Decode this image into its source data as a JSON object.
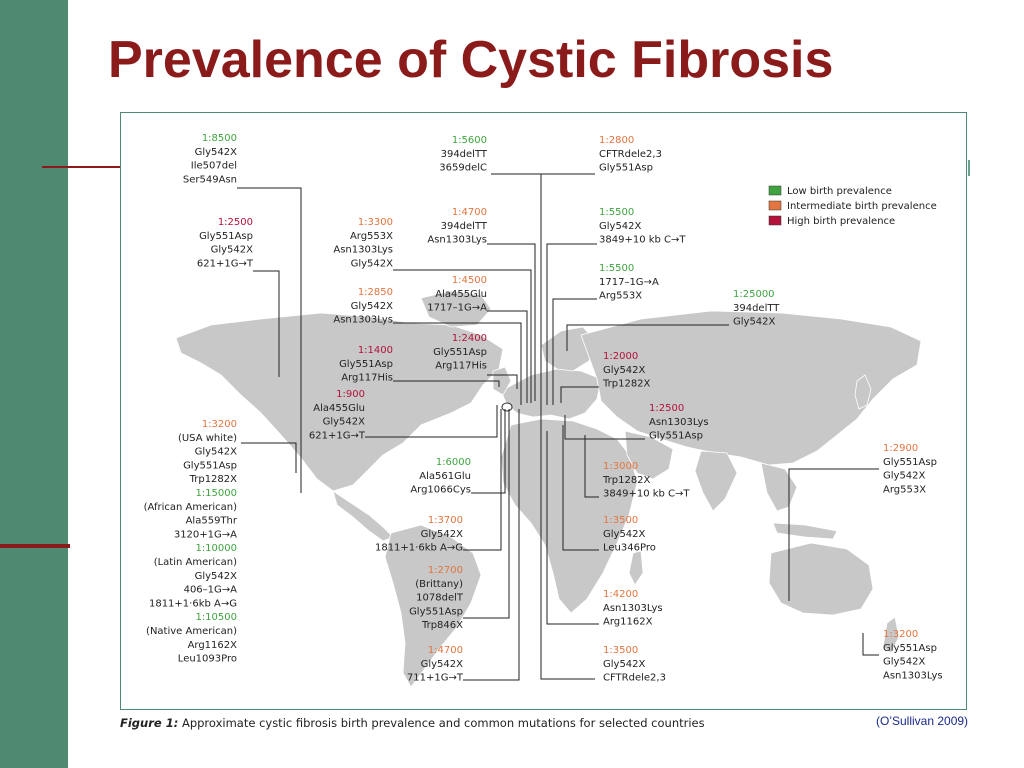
{
  "slide": {
    "title": "Prevalence of Cystic Fibrosis",
    "caption_label": "Figure 1:",
    "caption_text": "Approximate cystic fibrosis birth prevalence and common mutations for selected countries",
    "citation": "(O’Sullivan 2009)"
  },
  "colors": {
    "low": "#3fa33f",
    "intermediate": "#e27540",
    "high": "#b3123a",
    "accent": "#8b1a1a",
    "sidebar": "#4e8a72"
  },
  "legend": {
    "low": "Low birth prevalence",
    "intermediate": "Intermediate birth prevalence",
    "high": "High birth prevalence"
  },
  "groups": [
    {
      "id": "a",
      "lines": [
        [
          "1:8500",
          "g"
        ],
        [
          "Gly542X"
        ],
        [
          "Ile507del"
        ],
        [
          "Ser549Asn"
        ]
      ]
    },
    {
      "id": "b",
      "lines": [
        [
          "1:2500",
          "r"
        ],
        [
          "Gly551Asp"
        ],
        [
          "Gly542X"
        ],
        [
          "621+1G→T"
        ]
      ]
    },
    {
      "id": "c",
      "lines": [
        [
          "1:3200",
          "o"
        ],
        [
          "(USA white)"
        ],
        [
          "Gly542X"
        ],
        [
          "Gly551Asp"
        ],
        [
          "Trp1282X"
        ],
        [
          "1:15000",
          "g"
        ],
        [
          "(African American)"
        ],
        [
          "Ala559Thr"
        ],
        [
          "3120+1G→A"
        ],
        [
          "1:10000",
          "g"
        ],
        [
          "(Latin American)"
        ],
        [
          "Gly542X"
        ],
        [
          "406–1G→A"
        ],
        [
          "1811+1·6kb A→G"
        ],
        [
          "1:10500",
          "g"
        ],
        [
          "(Native American)"
        ],
        [
          "Arg1162X"
        ],
        [
          "Leu1093Pro"
        ]
      ]
    },
    {
      "id": "d",
      "lines": [
        [
          "1:3300",
          "o"
        ],
        [
          "Arg553X"
        ],
        [
          "Asn1303Lys"
        ],
        [
          "Gly542X"
        ]
      ]
    },
    {
      "id": "e",
      "lines": [
        [
          "1:2850",
          "o"
        ],
        [
          "Gly542X"
        ],
        [
          "Asn1303Lys"
        ]
      ]
    },
    {
      "id": "f",
      "lines": [
        [
          "1:1400",
          "r"
        ],
        [
          "Gly551Asp"
        ],
        [
          "Arg117His"
        ]
      ]
    },
    {
      "id": "g1",
      "lines": [
        [
          "1:5600",
          "g"
        ],
        [
          "394delTT"
        ],
        [
          "3659delC"
        ]
      ]
    },
    {
      "id": "h",
      "lines": [
        [
          "1:4700",
          "o"
        ],
        [
          "394delTT"
        ],
        [
          "Asn1303Lys"
        ]
      ]
    },
    {
      "id": "i",
      "lines": [
        [
          "1:4500",
          "o"
        ],
        [
          "Ala455Glu"
        ],
        [
          "1717–1G→A"
        ]
      ]
    },
    {
      "id": "j",
      "lines": [
        [
          "1:2400",
          "r"
        ],
        [
          "Gly551Asp"
        ],
        [
          "Arg117His"
        ]
      ]
    },
    {
      "id": "k",
      "lines": [
        [
          "1:900",
          "r"
        ],
        [
          "Ala455Glu"
        ],
        [
          "Gly542X"
        ],
        [
          "621+1G→T"
        ]
      ]
    },
    {
      "id": "l",
      "lines": [
        [
          "1:6000",
          "g"
        ],
        [
          "Ala561Glu"
        ],
        [
          "Arg1066Cys"
        ]
      ]
    },
    {
      "id": "m",
      "lines": [
        [
          "1:3700",
          "o"
        ],
        [
          "Gly542X"
        ],
        [
          "1811+1·6kb A→G"
        ]
      ]
    },
    {
      "id": "n",
      "lines": [
        [
          "1:2700",
          "o"
        ],
        [
          "(Brittany)"
        ],
        [
          "1078delT"
        ],
        [
          "Gly551Asp"
        ],
        [
          "Trp846X"
        ]
      ]
    },
    {
      "id": "o1",
      "lines": [
        [
          "1:4700",
          "o"
        ],
        [
          "Gly542X"
        ],
        [
          "711+1G→T"
        ]
      ]
    },
    {
      "id": "p",
      "lines": [
        [
          "1:2800",
          "o"
        ],
        [
          "CFTRdele2,3"
        ],
        [
          "Gly551Asp"
        ]
      ]
    },
    {
      "id": "q",
      "lines": [
        [
          "1:5500",
          "g"
        ],
        [
          "Gly542X"
        ],
        [
          "3849+10 kb C→T"
        ]
      ]
    },
    {
      "id": "r1",
      "lines": [
        [
          "1:5500",
          "g"
        ],
        [
          "1717–1G→A"
        ],
        [
          "Arg553X"
        ]
      ]
    },
    {
      "id": "s",
      "lines": [
        [
          "1:25000",
          "g"
        ],
        [
          "394delTT"
        ],
        [
          "Gly542X"
        ]
      ]
    },
    {
      "id": "t",
      "lines": [
        [
          "1:2000",
          "r"
        ],
        [
          "Gly542X"
        ],
        [
          "Trp1282X"
        ]
      ]
    },
    {
      "id": "u",
      "lines": [
        [
          "1:2500",
          "r"
        ],
        [
          "Asn1303Lys"
        ],
        [
          "Gly551Asp"
        ]
      ]
    },
    {
      "id": "v",
      "lines": [
        [
          "1:3000",
          "o"
        ],
        [
          "Trp1282X"
        ],
        [
          "3849+10 kb C→T"
        ]
      ]
    },
    {
      "id": "w",
      "lines": [
        [
          "1:3500",
          "o"
        ],
        [
          "Gly542X"
        ],
        [
          "Leu346Pro"
        ]
      ]
    },
    {
      "id": "x",
      "lines": [
        [
          "1:4200",
          "o"
        ],
        [
          "Asn1303Lys"
        ],
        [
          "Arg1162X"
        ]
      ]
    },
    {
      "id": "y",
      "lines": [
        [
          "1:3500",
          "o"
        ],
        [
          "Gly542X"
        ],
        [
          "CFTRdele2,3"
        ]
      ]
    },
    {
      "id": "z",
      "lines": [
        [
          "1:2900",
          "o"
        ],
        [
          "Gly551Asp"
        ],
        [
          "Gly542X"
        ],
        [
          "Arg553X"
        ]
      ]
    },
    {
      "id": "aa",
      "lines": [
        [
          "1:3200",
          "o"
        ],
        [
          "Gly551Asp"
        ],
        [
          "Gly542X"
        ],
        [
          "Asn1303Lys"
        ]
      ]
    }
  ]
}
